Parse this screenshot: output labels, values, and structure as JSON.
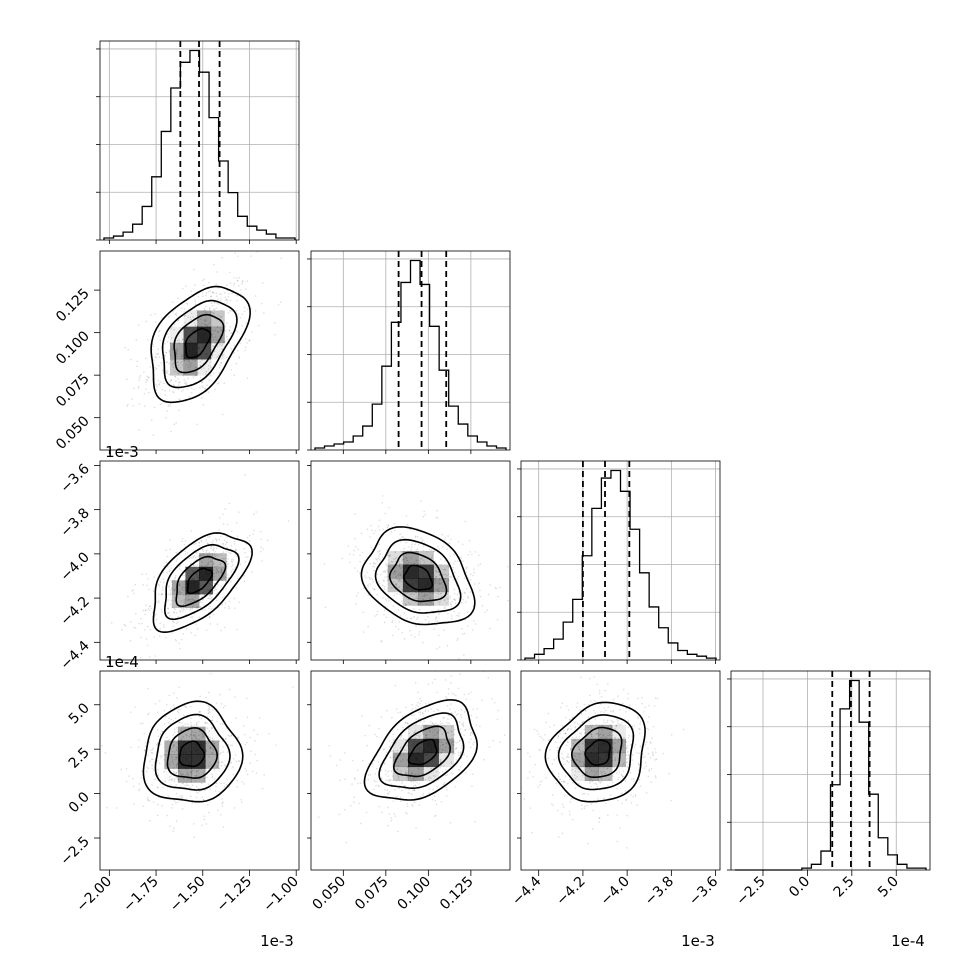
{
  "chart_data": {
    "type": "corner",
    "parameters": [
      {
        "name": "p0",
        "scale_label": "1e-3",
        "lim": [
          -2.05,
          -0.985
        ],
        "ticks": [
          -2.0,
          -1.75,
          -1.5,
          -1.25,
          -1.0
        ],
        "tick_labels": [
          "−2.00",
          "−1.75",
          "−1.50",
          "−1.25",
          "−1.00"
        ],
        "quantiles": [
          -1.62,
          -1.52,
          -1.41
        ]
      },
      {
        "name": "p1",
        "scale_label": "",
        "lim": [
          0.031,
          0.148
        ],
        "ticks": [
          0.05,
          0.075,
          0.1,
          0.125
        ],
        "tick_labels": [
          "0.050",
          "0.075",
          "0.100",
          "0.125"
        ],
        "quantiles": [
          0.0825,
          0.096,
          0.1105
        ]
      },
      {
        "name": "p2",
        "scale_label": "1e-3",
        "lim": [
          -4.48,
          -3.58
        ],
        "ticks": [
          -4.4,
          -4.2,
          -4.0,
          -3.8,
          -3.6
        ],
        "tick_labels": [
          "−4.4",
          "−4.2",
          "−4.0",
          "−3.8",
          "−3.6"
        ],
        "quantiles": [
          -4.2,
          -4.1,
          -3.99
        ]
      },
      {
        "name": "p3",
        "scale_label": "1e-4",
        "lim": [
          -4.3,
          6.9
        ],
        "ticks": [
          -2.5,
          0.0,
          2.5,
          5.0
        ],
        "tick_labels": [
          "−2.5",
          "0.0",
          "2.5",
          "5.0"
        ],
        "quantiles": [
          1.4,
          2.45,
          3.5
        ]
      }
    ],
    "histograms": [
      {
        "param": "p0",
        "bins": 20,
        "counts": [
          1,
          2,
          4,
          8,
          17,
          32,
          55,
          77,
          90,
          96,
          85,
          62,
          40,
          24,
          12,
          7,
          5,
          3,
          1,
          1
        ]
      },
      {
        "param": "p1",
        "bins": 20,
        "counts": [
          1,
          2,
          3,
          4,
          7,
          12,
          23,
          42,
          64,
          84,
          95,
          83,
          62,
          40,
          22,
          13,
          7,
          4,
          2,
          1
        ]
      },
      {
        "param": "p2",
        "bins": 20,
        "counts": [
          1,
          3,
          6,
          11,
          20,
          32,
          55,
          80,
          96,
          100,
          89,
          69,
          46,
          28,
          17,
          9,
          5,
          3,
          2,
          1
        ]
      },
      {
        "param": "p3",
        "bins": 20,
        "counts": [
          0,
          0,
          0,
          0,
          0,
          0,
          0,
          1,
          3,
          10,
          45,
          85,
          100,
          78,
          40,
          17,
          8,
          3,
          1,
          1
        ]
      }
    ],
    "pair_plots": [
      {
        "x": "p0",
        "y": "p1",
        "peak": [
          -1.53,
          0.094
        ],
        "sd": [
          0.13,
          0.017
        ],
        "rho": 0.45
      },
      {
        "x": "p0",
        "y": "p2",
        "peak": [
          -1.52,
          -4.12
        ],
        "sd": [
          0.13,
          0.11
        ],
        "rho": 0.55
      },
      {
        "x": "p1",
        "y": "p2",
        "peak": [
          0.094,
          -4.11
        ],
        "sd": [
          0.016,
          0.11
        ],
        "rho": -0.25
      },
      {
        "x": "p0",
        "y": "p3",
        "peak": [
          -1.56,
          2.2
        ],
        "sd": [
          0.13,
          1.4
        ],
        "rho": 0.05
      },
      {
        "x": "p1",
        "y": "p3",
        "peak": [
          0.097,
          2.3
        ],
        "sd": [
          0.016,
          1.4
        ],
        "rho": 0.42
      },
      {
        "x": "p2",
        "y": "p3",
        "peak": [
          -4.13,
          2.3
        ],
        "sd": [
          0.11,
          1.4
        ],
        "rho": 0.15
      }
    ],
    "contour_levels": [
      0.118,
      0.393,
      0.675,
      0.864
    ],
    "grid": true,
    "legend": "none",
    "title": "",
    "xlabel": "",
    "ylabel": "",
    "colors": {
      "line": "#000000",
      "grid": "#b0b0b0",
      "density": "#000000",
      "points": "#000000"
    }
  }
}
